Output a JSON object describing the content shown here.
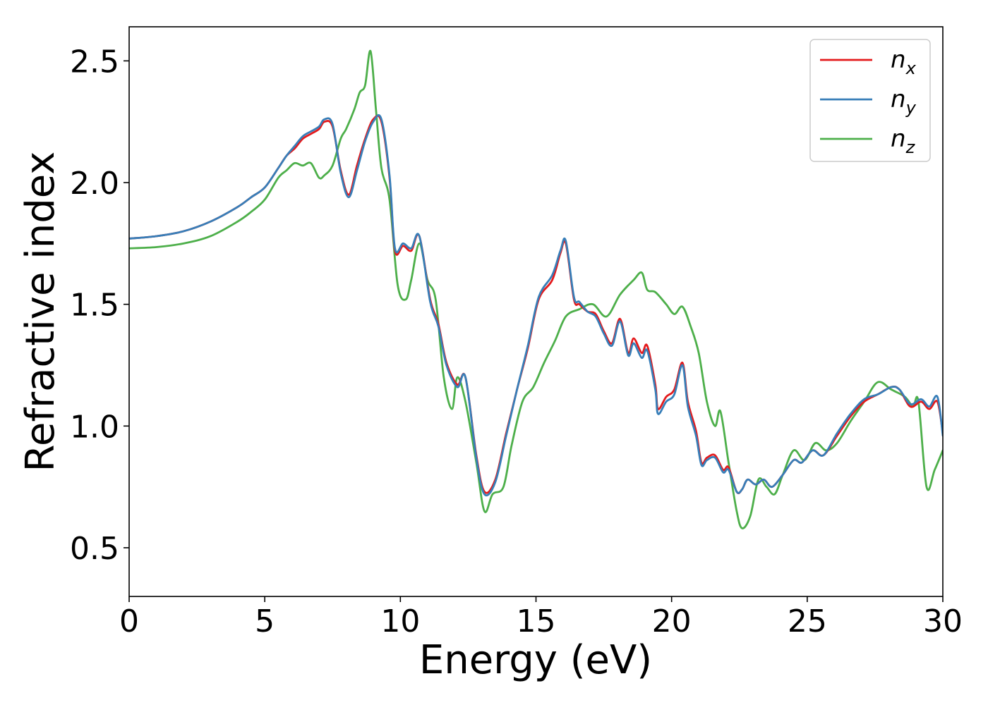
{
  "chart_data": {
    "type": "line",
    "title": "",
    "xlabel": "Energy (eV)",
    "ylabel": "Refractive index",
    "xlim": [
      0,
      30
    ],
    "ylim": [
      0.3,
      2.64
    ],
    "xticks": [
      0,
      5,
      10,
      15,
      20,
      25,
      30
    ],
    "xtick_labels": [
      "0",
      "5",
      "10",
      "15",
      "20",
      "25",
      "30"
    ],
    "yticks": [
      0.5,
      1.0,
      1.5,
      2.0,
      2.5
    ],
    "ytick_labels": [
      "0.5",
      "1.0",
      "1.5",
      "2.0",
      "2.5"
    ],
    "grid": false,
    "legend_position": "top-right",
    "series": [
      {
        "name": "n",
        "subscript": "x",
        "color": "#e41a1c",
        "x": [
          0,
          1,
          2,
          3,
          4,
          4.5,
          5,
          5.5,
          5.8,
          6.1,
          6.4,
          6.7,
          7,
          7.2,
          7.5,
          7.8,
          8.1,
          8.4,
          8.7,
          9,
          9.3,
          9.6,
          9.8,
          10.1,
          10.4,
          10.7,
          11.1,
          11.4,
          11.7,
          12.1,
          12.4,
          12.8,
          13.1,
          13.5,
          13.9,
          14.3,
          14.7,
          15.1,
          15.6,
          15.9,
          16.1,
          16.4,
          16.6,
          16.9,
          17.2,
          17.5,
          17.8,
          18.1,
          18.4,
          18.6,
          18.9,
          19.1,
          19.4,
          19.5,
          19.8,
          20.1,
          20.4,
          20.6,
          20.9,
          21.1,
          21.3,
          21.6,
          21.9,
          22.1,
          22.4,
          22.6,
          22.8,
          23.1,
          23.4,
          23.7,
          24.1,
          24.5,
          24.8,
          25.2,
          25.6,
          26.1,
          26.6,
          27.1,
          27.6,
          28.1,
          28.4,
          28.8,
          29.2,
          29.5,
          29.8,
          30
        ],
        "y": [
          1.77,
          1.78,
          1.8,
          1.84,
          1.9,
          1.94,
          1.98,
          2.06,
          2.11,
          2.14,
          2.18,
          2.2,
          2.22,
          2.25,
          2.23,
          2.05,
          1.95,
          2.07,
          2.18,
          2.26,
          2.25,
          2.02,
          1.72,
          1.74,
          1.72,
          1.78,
          1.52,
          1.42,
          1.26,
          1.17,
          1.2,
          0.88,
          0.73,
          0.78,
          0.97,
          1.15,
          1.32,
          1.52,
          1.6,
          1.71,
          1.75,
          1.52,
          1.5,
          1.47,
          1.46,
          1.39,
          1.34,
          1.44,
          1.3,
          1.36,
          1.3,
          1.33,
          1.17,
          1.07,
          1.12,
          1.15,
          1.26,
          1.1,
          0.98,
          0.85,
          0.87,
          0.88,
          0.82,
          0.83,
          0.73,
          0.74,
          0.78,
          0.76,
          0.78,
          0.75,
          0.8,
          0.86,
          0.85,
          0.9,
          0.88,
          0.96,
          1.04,
          1.1,
          1.13,
          1.16,
          1.15,
          1.08,
          1.1,
          1.07,
          1.1,
          0.97
        ]
      },
      {
        "name": "n",
        "subscript": "y",
        "color": "#377eb8",
        "x": [
          0,
          1,
          2,
          3,
          4,
          4.5,
          5,
          5.5,
          5.8,
          6.1,
          6.4,
          6.7,
          7,
          7.2,
          7.5,
          7.8,
          8.1,
          8.4,
          8.7,
          9,
          9.3,
          9.6,
          9.8,
          10.1,
          10.4,
          10.7,
          11.1,
          11.4,
          11.7,
          12.1,
          12.4,
          12.8,
          13.1,
          13.5,
          13.9,
          14.3,
          14.7,
          15.1,
          15.6,
          15.9,
          16.1,
          16.4,
          16.6,
          16.9,
          17.2,
          17.5,
          17.8,
          18.1,
          18.4,
          18.6,
          18.9,
          19.1,
          19.4,
          19.5,
          19.8,
          20.1,
          20.4,
          20.6,
          20.9,
          21.1,
          21.3,
          21.6,
          21.9,
          22.1,
          22.4,
          22.6,
          22.8,
          23.1,
          23.4,
          23.7,
          24.1,
          24.5,
          24.8,
          25.2,
          25.6,
          26.1,
          26.6,
          27.1,
          27.6,
          28.1,
          28.4,
          28.8,
          29.2,
          29.5,
          29.8,
          30
        ],
        "y": [
          1.77,
          1.78,
          1.8,
          1.84,
          1.9,
          1.94,
          1.98,
          2.06,
          2.11,
          2.15,
          2.19,
          2.21,
          2.23,
          2.26,
          2.24,
          2.04,
          1.94,
          2.05,
          2.17,
          2.25,
          2.26,
          2.03,
          1.73,
          1.75,
          1.73,
          1.78,
          1.51,
          1.41,
          1.25,
          1.16,
          1.2,
          0.87,
          0.72,
          0.77,
          0.96,
          1.15,
          1.33,
          1.53,
          1.62,
          1.72,
          1.76,
          1.53,
          1.51,
          1.47,
          1.45,
          1.38,
          1.33,
          1.43,
          1.29,
          1.34,
          1.28,
          1.31,
          1.15,
          1.05,
          1.1,
          1.13,
          1.25,
          1.08,
          0.96,
          0.84,
          0.86,
          0.87,
          0.81,
          0.82,
          0.73,
          0.74,
          0.78,
          0.76,
          0.78,
          0.75,
          0.8,
          0.86,
          0.85,
          0.9,
          0.88,
          0.97,
          1.05,
          1.11,
          1.13,
          1.16,
          1.15,
          1.09,
          1.11,
          1.08,
          1.12,
          0.96
        ]
      },
      {
        "name": "n",
        "subscript": "z",
        "color": "#4daf4a",
        "x": [
          0,
          1,
          2,
          3,
          4,
          4.5,
          5,
          5.5,
          5.8,
          6.1,
          6.4,
          6.7,
          7,
          7.2,
          7.5,
          7.8,
          8,
          8.3,
          8.5,
          8.7,
          8.9,
          9.1,
          9.3,
          9.6,
          9.9,
          10.2,
          10.4,
          10.7,
          11,
          11.3,
          11.6,
          11.9,
          12.1,
          12.4,
          12.8,
          13.1,
          13.4,
          13.8,
          14.1,
          14.5,
          14.9,
          15.3,
          15.7,
          16.1,
          16.6,
          17.1,
          17.6,
          18.1,
          18.6,
          18.9,
          19.1,
          19.4,
          19.8,
          20.1,
          20.4,
          20.7,
          21,
          21.3,
          21.6,
          21.8,
          22.1,
          22.4,
          22.6,
          22.9,
          23.2,
          23.5,
          23.8,
          24.1,
          24.5,
          24.9,
          25.3,
          25.7,
          26.1,
          26.6,
          27.1,
          27.6,
          28.1,
          28.6,
          28.9,
          29.1,
          29.4,
          29.7,
          30
        ],
        "y": [
          1.73,
          1.735,
          1.75,
          1.78,
          1.84,
          1.88,
          1.93,
          2.02,
          2.05,
          2.08,
          2.07,
          2.08,
          2.02,
          2.03,
          2.07,
          2.18,
          2.22,
          2.3,
          2.37,
          2.4,
          2.54,
          2.3,
          2.06,
          1.93,
          1.58,
          1.52,
          1.6,
          1.75,
          1.6,
          1.52,
          1.2,
          1.07,
          1.2,
          1.1,
          0.85,
          0.65,
          0.72,
          0.75,
          0.92,
          1.1,
          1.16,
          1.26,
          1.35,
          1.45,
          1.48,
          1.5,
          1.45,
          1.54,
          1.6,
          1.63,
          1.56,
          1.55,
          1.5,
          1.46,
          1.49,
          1.41,
          1.3,
          1.1,
          1.0,
          1.06,
          0.85,
          0.65,
          0.58,
          0.63,
          0.78,
          0.75,
          0.72,
          0.8,
          0.9,
          0.86,
          0.93,
          0.9,
          0.93,
          1.02,
          1.1,
          1.18,
          1.15,
          1.12,
          1.08,
          1.1,
          0.75,
          0.82,
          0.9
        ]
      }
    ]
  }
}
